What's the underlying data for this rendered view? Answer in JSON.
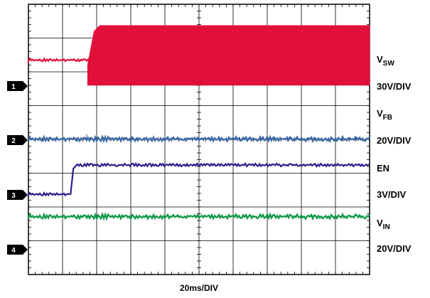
{
  "chart_data": {
    "type": "line",
    "title": "",
    "xlabel": "20ms/DIV",
    "grid": true,
    "divisions": {
      "x": 10,
      "y": 8
    },
    "channels": [
      {
        "marker": "1",
        "name": "V",
        "sub": "SW",
        "scale": "30V/DIV",
        "color": "#e0103a"
      },
      {
        "marker": "2",
        "name": "V",
        "sub": "FB",
        "scale": "20V/DIV",
        "color": "#3d6aa8"
      },
      {
        "marker": "3",
        "name": "EN",
        "sub": "",
        "scale": "3V/DIV",
        "color": "#2e1c8c"
      },
      {
        "marker": "4",
        "name": "V",
        "sub": "IN",
        "scale": "20V/DIV",
        "color": "#149a4a"
      }
    ],
    "series": [
      {
        "channel": "1",
        "kind": "band",
        "comment_levels_div": "pre-switch level then switching band",
        "pre_level_div": 0.75,
        "switch_start_div": 1.8,
        "band_low_div": -0.1,
        "band_high_div": 2.0
      },
      {
        "channel": "2",
        "kind": "flat",
        "level_div": 0.0
      },
      {
        "channel": "3",
        "kind": "step",
        "low_div": 0.0,
        "high_div": 1.0,
        "step_time_div": 1.65
      },
      {
        "channel": "4",
        "kind": "flat",
        "level_div": 1.0
      }
    ]
  }
}
